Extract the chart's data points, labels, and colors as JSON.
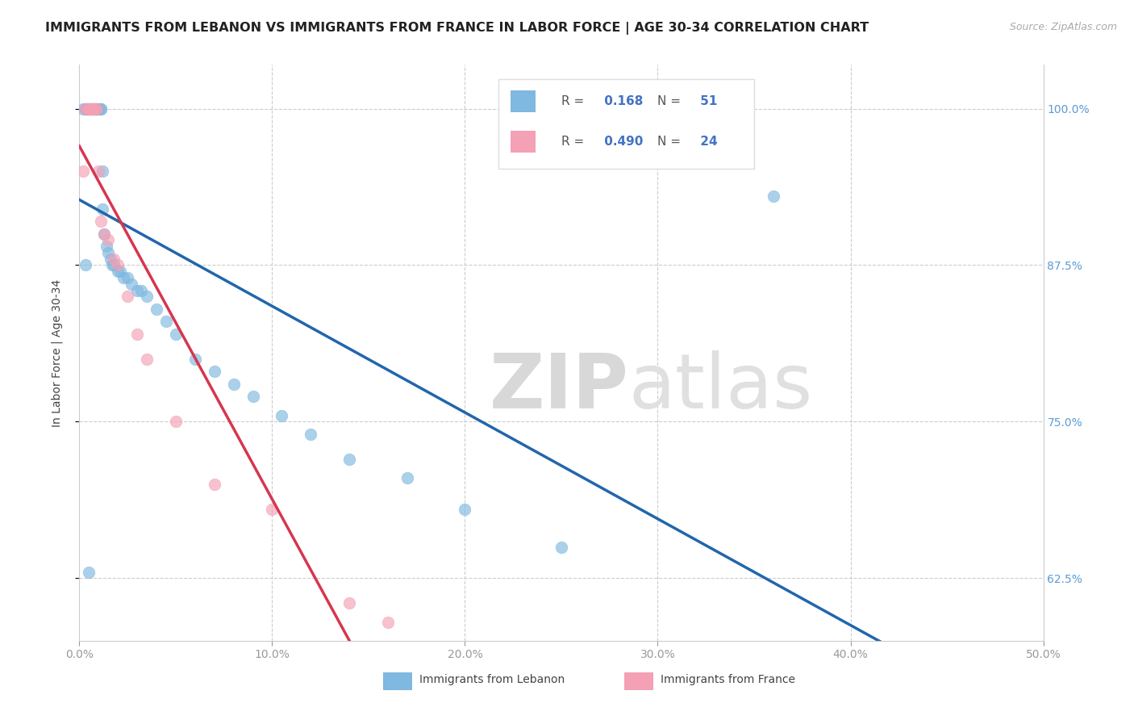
{
  "title": "IMMIGRANTS FROM LEBANON VS IMMIGRANTS FROM FRANCE IN LABOR FORCE | AGE 30-34 CORRELATION CHART",
  "source": "Source: ZipAtlas.com",
  "ylabel": "In Labor Force | Age 30-34",
  "xlim": [
    0.0,
    50.0
  ],
  "ylim": [
    57.5,
    103.5
  ],
  "x_ticks": [
    0.0,
    10.0,
    20.0,
    30.0,
    40.0,
    50.0
  ],
  "y_ticks": [
    62.5,
    75.0,
    87.5,
    100.0
  ],
  "x_tick_labels": [
    "0.0%",
    "10.0%",
    "20.0%",
    "30.0%",
    "40.0%",
    "50.0%"
  ],
  "y_tick_labels": [
    "62.5%",
    "75.0%",
    "87.5%",
    "100.0%"
  ],
  "legend_label1": "Immigrants from Lebanon",
  "legend_label2": "Immigrants from France",
  "R1": 0.168,
  "N1": 51,
  "R2": 0.49,
  "N2": 24,
  "color_lebanon": "#7fb8e0",
  "color_france": "#f4a0b5",
  "line_color_lebanon": "#2166ac",
  "line_color_france": "#d6364e",
  "background_color": "#ffffff",
  "watermark_zip": "ZIP",
  "watermark_atlas": "atlas",
  "title_fontsize": 11.5,
  "axis_fontsize": 10,
  "tick_fontsize": 10,
  "lebanon_x": [
    0.2,
    0.3,
    0.3,
    0.4,
    0.4,
    0.5,
    0.5,
    0.6,
    0.6,
    0.7,
    0.7,
    0.8,
    0.8,
    0.9,
    0.9,
    1.0,
    1.0,
    1.1,
    1.1,
    1.2,
    1.2,
    1.3,
    1.4,
    1.5,
    1.6,
    1.7,
    1.8,
    2.0,
    2.1,
    2.3,
    2.5,
    2.7,
    3.0,
    3.2,
    3.5,
    4.0,
    4.5,
    5.0,
    6.0,
    7.0,
    8.0,
    9.0,
    10.5,
    12.0,
    14.0,
    17.0,
    20.0,
    25.0,
    36.0,
    0.3,
    0.5
  ],
  "lebanon_y": [
    100.0,
    100.0,
    100.0,
    100.0,
    100.0,
    100.0,
    100.0,
    100.0,
    100.0,
    100.0,
    100.0,
    100.0,
    100.0,
    100.0,
    100.0,
    100.0,
    100.0,
    100.0,
    100.0,
    95.0,
    92.0,
    90.0,
    89.0,
    88.5,
    88.0,
    87.5,
    87.5,
    87.0,
    87.0,
    86.5,
    86.5,
    86.0,
    85.5,
    85.5,
    85.0,
    84.0,
    83.0,
    82.0,
    80.0,
    79.0,
    78.0,
    77.0,
    75.5,
    74.0,
    72.0,
    70.5,
    68.0,
    65.0,
    93.0,
    87.5,
    63.0
  ],
  "france_x": [
    0.2,
    0.3,
    0.4,
    0.5,
    0.6,
    0.6,
    0.7,
    0.7,
    0.8,
    0.9,
    1.0,
    1.1,
    1.3,
    1.5,
    1.8,
    2.0,
    2.5,
    3.0,
    3.5,
    5.0,
    7.0,
    10.0,
    14.0,
    16.0
  ],
  "france_y": [
    95.0,
    100.0,
    100.0,
    100.0,
    100.0,
    100.0,
    100.0,
    100.0,
    100.0,
    100.0,
    95.0,
    91.0,
    90.0,
    89.5,
    88.0,
    87.5,
    85.0,
    82.0,
    80.0,
    75.0,
    70.0,
    68.0,
    60.5,
    59.0
  ]
}
